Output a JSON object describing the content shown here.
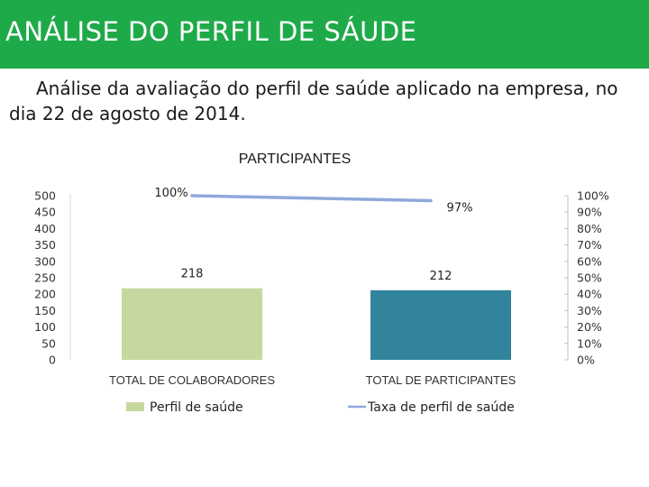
{
  "header": {
    "title": "ANÁLISE DO PERFIL DE SÁUDE",
    "subtitle": "Análise da avaliação do perfil de saúde aplicado na empresa, no dia 22 de agosto de 2014."
  },
  "colors": {
    "header_bg": "#1faa4a",
    "bar_1": "#c6d89f",
    "bar_2": "#31849b",
    "line": "#8ea9db"
  },
  "chart_data": {
    "type": "bar",
    "title": "PARTICIPANTES",
    "categories": [
      "TOTAL DE COLABORADORES",
      "TOTAL DE PARTICIPANTES"
    ],
    "series": [
      {
        "name": "Perfil de saúde",
        "type": "bar",
        "axis": "left",
        "values": [
          218,
          212
        ],
        "labels": [
          "218",
          "212"
        ]
      },
      {
        "name": "Taxa de perfil de saúde",
        "type": "line",
        "axis": "right",
        "values": [
          100,
          97
        ],
        "labels": [
          "100%",
          "97%"
        ]
      }
    ],
    "y_left": {
      "min": 0,
      "max": 500,
      "ticks": [
        "500",
        "450",
        "400",
        "350",
        "300",
        "250",
        "200",
        "150",
        "100",
        "50",
        "0"
      ]
    },
    "y_right": {
      "min": 0,
      "max": 100,
      "ticks": [
        "100%",
        "90%",
        "80%",
        "70%",
        "60%",
        "50%",
        "40%",
        "30%",
        "20%",
        "10%",
        "0%"
      ]
    },
    "legend": "bottom",
    "grid": false
  }
}
